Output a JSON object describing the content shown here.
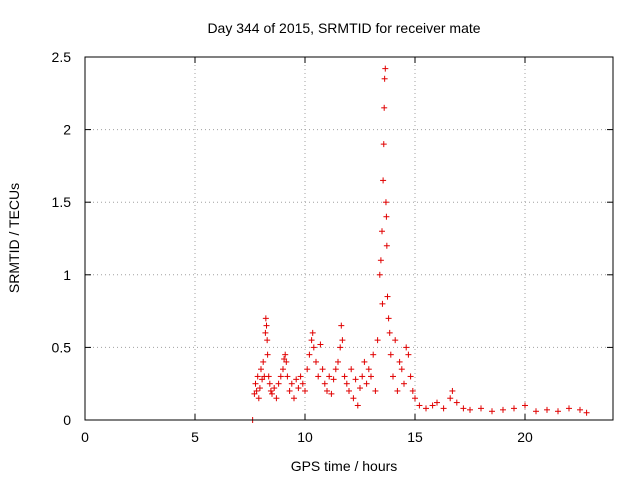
{
  "chart_data": {
    "type": "scatter",
    "title": "Day 344 of 2015, SRMTID for receiver mate",
    "xlabel": "GPS time / hours",
    "ylabel": "SRMTID / TECUs",
    "xlim": [
      0,
      24
    ],
    "ylim": [
      0,
      2.5
    ],
    "x_ticks": [
      "0",
      "5",
      "10",
      "15",
      "20"
    ],
    "y_ticks": [
      "0",
      "0.5",
      "1",
      "1.5",
      "2",
      "2.5"
    ],
    "grid": true,
    "marker": "plus",
    "series_color": "#e00000",
    "series": [
      {
        "points": [
          [
            7.62,
            0.0
          ],
          [
            7.7,
            0.18
          ],
          [
            7.75,
            0.25
          ],
          [
            7.8,
            0.2
          ],
          [
            7.85,
            0.3
          ],
          [
            7.9,
            0.15
          ],
          [
            7.95,
            0.22
          ],
          [
            8.0,
            0.35
          ],
          [
            8.05,
            0.28
          ],
          [
            8.1,
            0.4
          ],
          [
            8.15,
            0.3
          ],
          [
            8.2,
            0.6
          ],
          [
            8.22,
            0.7
          ],
          [
            8.25,
            0.65
          ],
          [
            8.28,
            0.55
          ],
          [
            8.3,
            0.45
          ],
          [
            8.35,
            0.3
          ],
          [
            8.4,
            0.25
          ],
          [
            8.45,
            0.2
          ],
          [
            8.5,
            0.18
          ],
          [
            8.6,
            0.22
          ],
          [
            8.7,
            0.15
          ],
          [
            8.8,
            0.25
          ],
          [
            8.9,
            0.3
          ],
          [
            9.0,
            0.35
          ],
          [
            9.05,
            0.42
          ],
          [
            9.1,
            0.45
          ],
          [
            9.15,
            0.4
          ],
          [
            9.2,
            0.3
          ],
          [
            9.3,
            0.2
          ],
          [
            9.4,
            0.25
          ],
          [
            9.5,
            0.15
          ],
          [
            9.6,
            0.28
          ],
          [
            9.7,
            0.22
          ],
          [
            9.8,
            0.3
          ],
          [
            9.9,
            0.25
          ],
          [
            10.0,
            0.2
          ],
          [
            10.1,
            0.35
          ],
          [
            10.2,
            0.45
          ],
          [
            10.3,
            0.55
          ],
          [
            10.35,
            0.6
          ],
          [
            10.4,
            0.5
          ],
          [
            10.5,
            0.4
          ],
          [
            10.6,
            0.3
          ],
          [
            10.7,
            0.52
          ],
          [
            10.8,
            0.35
          ],
          [
            10.9,
            0.25
          ],
          [
            11.0,
            0.2
          ],
          [
            11.1,
            0.3
          ],
          [
            11.2,
            0.18
          ],
          [
            11.3,
            0.28
          ],
          [
            11.4,
            0.35
          ],
          [
            11.5,
            0.4
          ],
          [
            11.6,
            0.5
          ],
          [
            11.65,
            0.65
          ],
          [
            11.7,
            0.55
          ],
          [
            11.8,
            0.3
          ],
          [
            11.9,
            0.25
          ],
          [
            12.0,
            0.2
          ],
          [
            12.1,
            0.35
          ],
          [
            12.2,
            0.15
          ],
          [
            12.3,
            0.28
          ],
          [
            12.4,
            0.1
          ],
          [
            12.5,
            0.22
          ],
          [
            12.6,
            0.3
          ],
          [
            12.7,
            0.4
          ],
          [
            12.8,
            0.25
          ],
          [
            12.9,
            0.35
          ],
          [
            13.0,
            0.3
          ],
          [
            13.1,
            0.45
          ],
          [
            13.2,
            0.2
          ],
          [
            13.3,
            0.55
          ],
          [
            13.4,
            1.0
          ],
          [
            13.45,
            1.1
          ],
          [
            13.5,
            1.3
          ],
          [
            13.52,
            0.8
          ],
          [
            13.55,
            1.65
          ],
          [
            13.58,
            1.9
          ],
          [
            13.6,
            2.15
          ],
          [
            13.62,
            2.35
          ],
          [
            13.65,
            2.42
          ],
          [
            13.68,
            1.5
          ],
          [
            13.7,
            1.4
          ],
          [
            13.72,
            1.2
          ],
          [
            13.75,
            0.85
          ],
          [
            13.8,
            0.7
          ],
          [
            13.85,
            0.6
          ],
          [
            13.9,
            0.45
          ],
          [
            14.0,
            0.3
          ],
          [
            14.1,
            0.55
          ],
          [
            14.2,
            0.2
          ],
          [
            14.3,
            0.4
          ],
          [
            14.4,
            0.35
          ],
          [
            14.5,
            0.25
          ],
          [
            14.6,
            0.5
          ],
          [
            14.7,
            0.45
          ],
          [
            14.8,
            0.3
          ],
          [
            14.9,
            0.2
          ],
          [
            15.0,
            0.15
          ],
          [
            15.2,
            0.1
          ],
          [
            15.5,
            0.08
          ],
          [
            15.8,
            0.1
          ],
          [
            16.0,
            0.12
          ],
          [
            16.3,
            0.08
          ],
          [
            16.6,
            0.15
          ],
          [
            16.7,
            0.2
          ],
          [
            16.9,
            0.12
          ],
          [
            17.2,
            0.08
          ],
          [
            17.5,
            0.07
          ],
          [
            18.0,
            0.08
          ],
          [
            18.5,
            0.06
          ],
          [
            19.0,
            0.07
          ],
          [
            19.5,
            0.08
          ],
          [
            20.0,
            0.1
          ],
          [
            20.5,
            0.06
          ],
          [
            21.0,
            0.07
          ],
          [
            21.5,
            0.06
          ],
          [
            22.0,
            0.08
          ],
          [
            22.5,
            0.07
          ],
          [
            22.8,
            0.05
          ]
        ]
      }
    ]
  }
}
